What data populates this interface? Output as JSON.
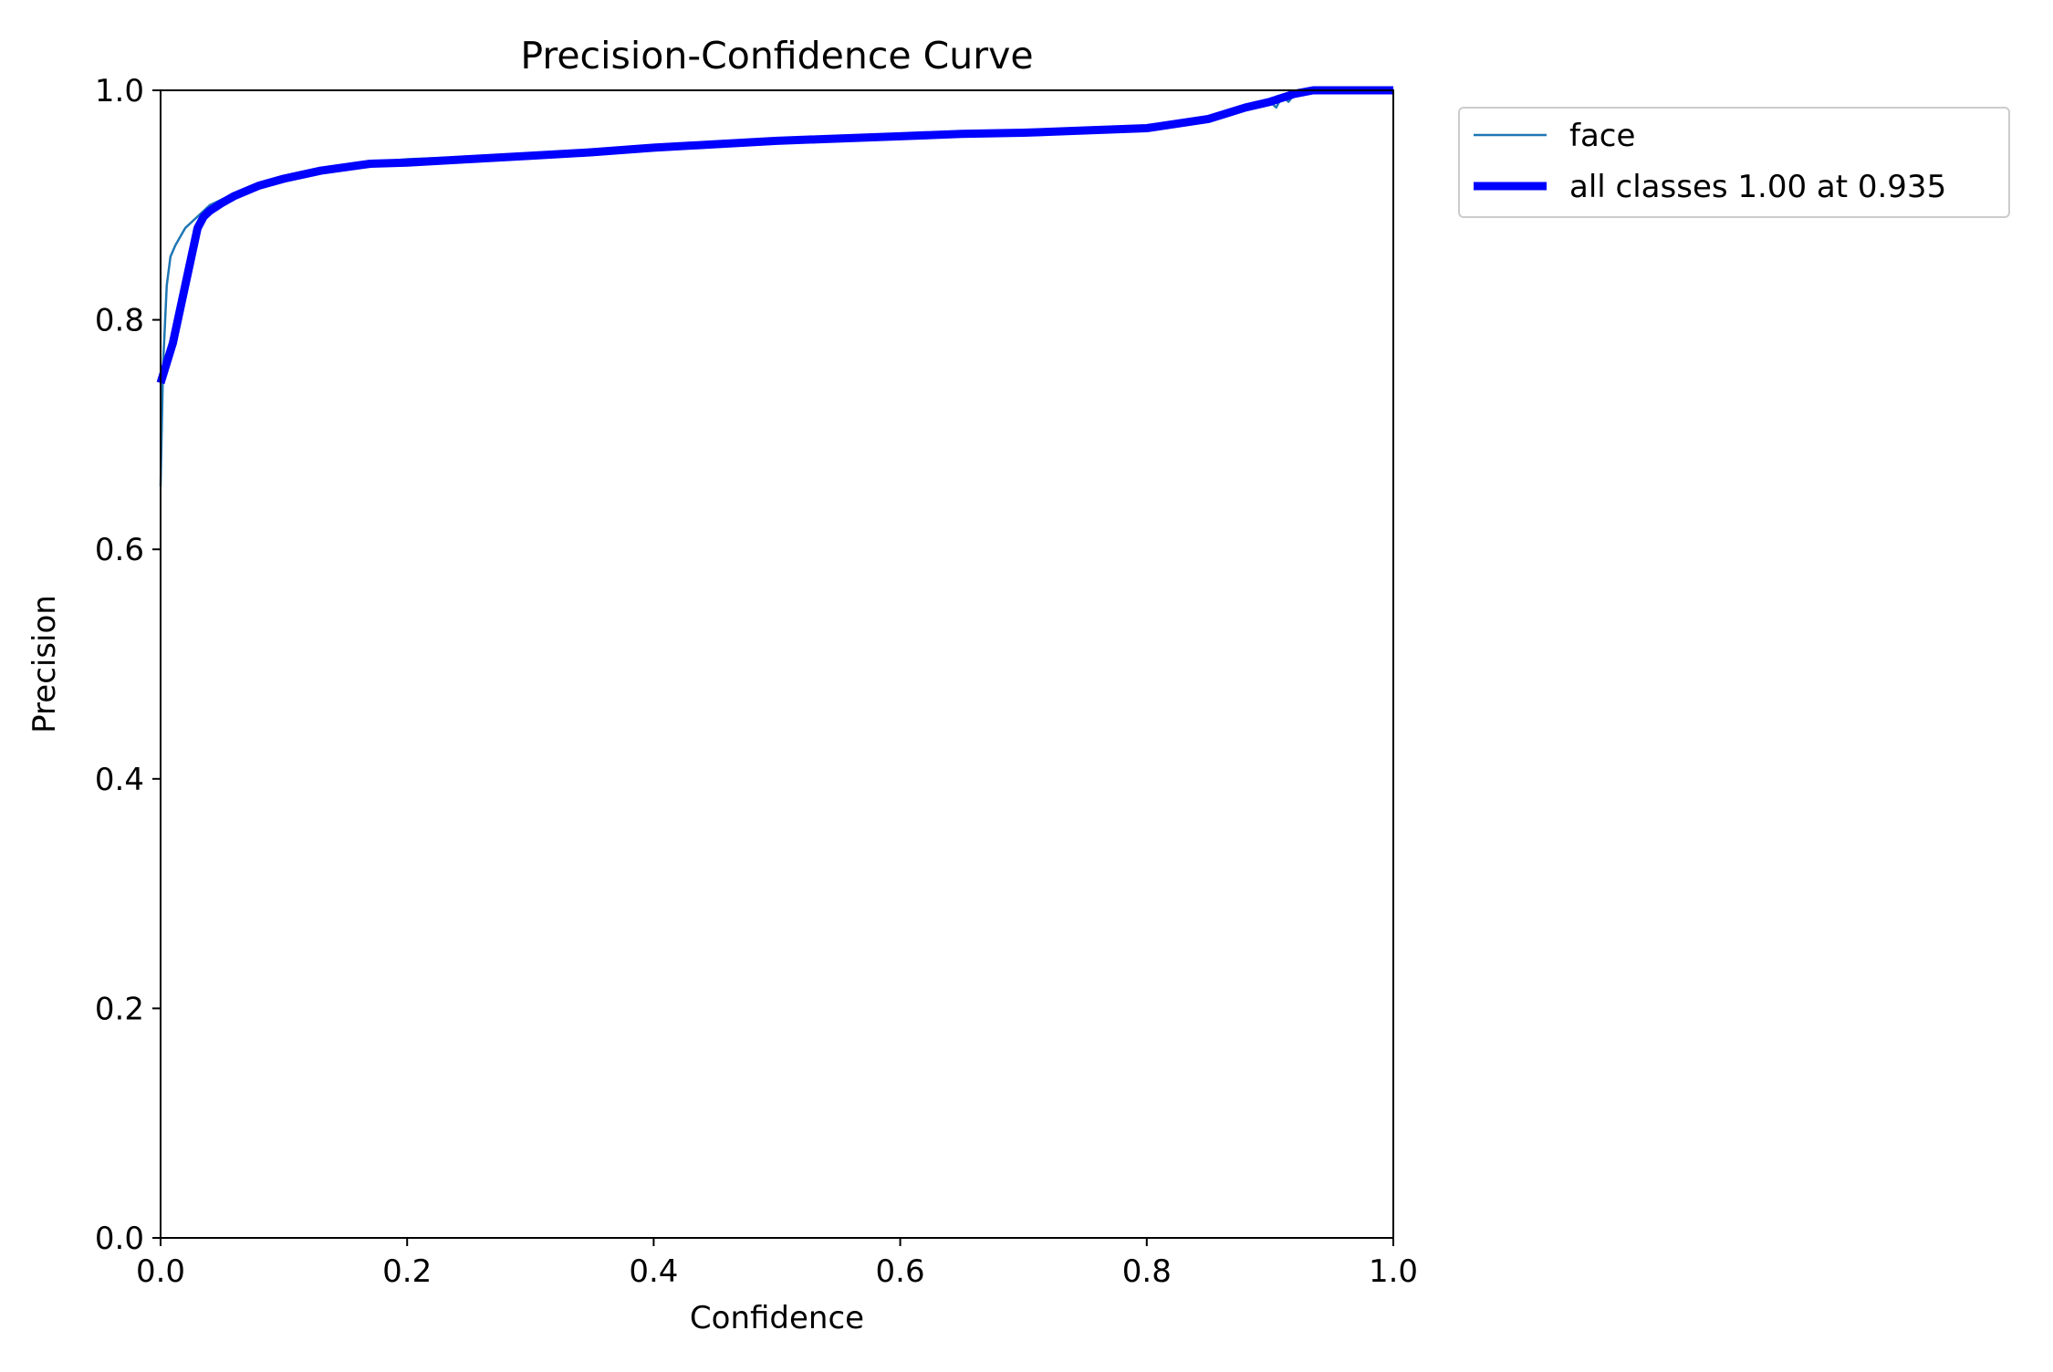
{
  "chart_data": {
    "type": "line",
    "title": "Precision-Confidence Curve",
    "xlabel": "Confidence",
    "ylabel": "Precision",
    "xlim": [
      0,
      1
    ],
    "ylim": [
      0,
      1
    ],
    "xticks": [
      "0.0",
      "0.2",
      "0.4",
      "0.6",
      "0.8",
      "1.0"
    ],
    "yticks": [
      "0.0",
      "0.2",
      "0.4",
      "0.6",
      "0.8",
      "1.0"
    ],
    "grid": false,
    "legend_position": "outside-top-right",
    "series": [
      {
        "name": "face",
        "color": "#1f77b4",
        "linewidth": "thin",
        "x": [
          0.0,
          0.002,
          0.005,
          0.008,
          0.012,
          0.02,
          0.03,
          0.04,
          0.05,
          0.07,
          0.1,
          0.15,
          0.2,
          0.25,
          0.3,
          0.35,
          0.4,
          0.45,
          0.5,
          0.55,
          0.6,
          0.65,
          0.7,
          0.75,
          0.8,
          0.85,
          0.88,
          0.9,
          0.905,
          0.91,
          0.915,
          0.92,
          0.93,
          0.95,
          1.0
        ],
        "y": [
          0.655,
          0.76,
          0.83,
          0.855,
          0.865,
          0.88,
          0.89,
          0.9,
          0.905,
          0.915,
          0.925,
          0.935,
          0.94,
          0.942,
          0.945,
          0.948,
          0.95,
          0.953,
          0.956,
          0.958,
          0.96,
          0.962,
          0.963,
          0.965,
          0.967,
          0.975,
          0.985,
          0.99,
          0.985,
          0.995,
          0.99,
          0.997,
          1.0,
          1.0,
          1.0
        ]
      },
      {
        "name": "all classes 1.00 at 0.935",
        "color": "#0000ff",
        "linewidth": "thick",
        "x": [
          0.0,
          0.01,
          0.02,
          0.03,
          0.035,
          0.04,
          0.05,
          0.06,
          0.08,
          0.1,
          0.13,
          0.17,
          0.2,
          0.25,
          0.3,
          0.35,
          0.4,
          0.45,
          0.5,
          0.55,
          0.6,
          0.65,
          0.7,
          0.75,
          0.8,
          0.85,
          0.88,
          0.9,
          0.92,
          0.935,
          1.0
        ],
        "y": [
          0.745,
          0.78,
          0.83,
          0.88,
          0.89,
          0.895,
          0.902,
          0.908,
          0.917,
          0.923,
          0.93,
          0.936,
          0.937,
          0.94,
          0.943,
          0.946,
          0.95,
          0.953,
          0.956,
          0.958,
          0.96,
          0.962,
          0.963,
          0.965,
          0.967,
          0.975,
          0.985,
          0.99,
          0.997,
          1.0,
          1.0
        ]
      }
    ]
  }
}
